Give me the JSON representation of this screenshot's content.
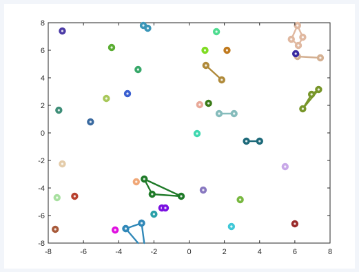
{
  "chart_data": {
    "type": "scatter",
    "title": "",
    "xlabel": "",
    "ylabel": "",
    "xlim": [
      -8,
      8
    ],
    "ylim": [
      -8,
      8
    ],
    "xticks": [
      -8,
      -6,
      -4,
      -2,
      0,
      2,
      4,
      6,
      8
    ],
    "yticks": [
      -8,
      -6,
      -4,
      -2,
      0,
      2,
      4,
      6,
      8
    ],
    "xtick_labels": [
      "-8",
      "-6",
      "-4",
      "-2",
      "0",
      "2",
      "4",
      "6",
      "8"
    ],
    "ytick_labels": [
      "-8",
      "-6",
      "-4",
      "-2",
      "0",
      "2",
      "4",
      "6",
      "8"
    ],
    "grid": false,
    "legend": "none",
    "points": [
      {
        "x": -7.2,
        "y": 7.4,
        "color": "#4b3aa6"
      },
      {
        "x": -4.4,
        "y": 6.2,
        "color": "#5aad32"
      },
      {
        "x": -2.9,
        "y": 4.6,
        "color": "#38a86a"
      },
      {
        "x": -3.5,
        "y": 2.85,
        "color": "#3a5fd0"
      },
      {
        "x": -4.7,
        "y": 2.5,
        "color": "#a8c85a"
      },
      {
        "x": -7.4,
        "y": 1.65,
        "color": "#3e8e78"
      },
      {
        "x": -5.6,
        "y": 0.8,
        "color": "#3a6aa0"
      },
      {
        "x": 1.55,
        "y": 7.35,
        "color": "#4fdc90"
      },
      {
        "x": 0.9,
        "y": 6.0,
        "color": "#80dc24"
      },
      {
        "x": 2.15,
        "y": 6.0,
        "color": "#c07a1e"
      },
      {
        "x": 1.1,
        "y": 2.15,
        "color": "#3a7a18"
      },
      {
        "x": 0.6,
        "y": 2.05,
        "color": "#e8a898"
      },
      {
        "x": 0.45,
        "y": -0.05,
        "color": "#40d8b0"
      },
      {
        "x": 6.05,
        "y": 5.75,
        "color": "#3a2aa0"
      },
      {
        "x": -7.2,
        "y": -2.25,
        "color": "#e4ccaa"
      },
      {
        "x": -7.5,
        "y": -4.7,
        "color": "#a8e0a0"
      },
      {
        "x": -6.5,
        "y": -4.6,
        "color": "#b8402e"
      },
      {
        "x": -7.6,
        "y": -7.0,
        "color": "#a85a3a"
      },
      {
        "x": -3.0,
        "y": -3.55,
        "color": "#f0a878"
      },
      {
        "x": 0.8,
        "y": -4.15,
        "color": "#8878c0"
      },
      {
        "x": 2.9,
        "y": -4.85,
        "color": "#78b840"
      },
      {
        "x": 5.45,
        "y": -2.45,
        "color": "#c8a8e8"
      },
      {
        "x": -2.0,
        "y": -5.9,
        "color": "#2aa0a8"
      },
      {
        "x": -4.2,
        "y": -7.05,
        "color": "#e010e0"
      },
      {
        "x": 2.4,
        "y": -6.8,
        "color": "#40c8d8"
      },
      {
        "x": 6.0,
        "y": -6.6,
        "color": "#9a2a2a"
      },
      {
        "x": -1.55,
        "y": -5.45,
        "color": "#7a10e0"
      },
      {
        "x": -1.35,
        "y": -5.45,
        "color": "#7a10e0"
      }
    ],
    "paths": [
      {
        "color": "#3a96b8",
        "closed": false,
        "points": [
          [
            -2.6,
            7.8
          ],
          [
            -2.35,
            7.6
          ]
        ]
      },
      {
        "color": "#b08a3a",
        "closed": false,
        "points": [
          [
            0.95,
            4.9
          ],
          [
            1.85,
            3.85
          ]
        ]
      },
      {
        "color": "#86bcbc",
        "closed": false,
        "points": [
          [
            1.7,
            1.4
          ],
          [
            2.55,
            1.4
          ]
        ]
      },
      {
        "color": "#1e6a7a",
        "closed": false,
        "points": [
          [
            3.25,
            -0.6
          ],
          [
            4.0,
            -0.6
          ]
        ]
      },
      {
        "color": "#e0b8a0",
        "closed": false,
        "points": [
          [
            6.15,
            7.8
          ],
          [
            6.45,
            6.95
          ],
          [
            6.2,
            6.35
          ],
          [
            5.8,
            6.8
          ],
          [
            6.15,
            7.8
          ]
        ]
      },
      {
        "color": "#d4b092",
        "closed": false,
        "points": [
          [
            6.15,
            5.55
          ],
          [
            7.45,
            5.45
          ]
        ]
      },
      {
        "color": "#78962a",
        "closed": true,
        "points": [
          [
            7.35,
            3.15
          ],
          [
            6.95,
            2.8
          ],
          [
            6.45,
            1.75
          ]
        ]
      },
      {
        "color": "#1e7a28",
        "closed": true,
        "points": [
          [
            -2.55,
            -3.35
          ],
          [
            -2.1,
            -4.45
          ],
          [
            -0.45,
            -4.6
          ]
        ]
      },
      {
        "color": "#3088b8",
        "closed": false,
        "points": [
          [
            -2.7,
            -6.55
          ],
          [
            -3.6,
            -6.95
          ]
        ]
      },
      {
        "color": "#3088b8",
        "closed": false,
        "points": [
          [
            -2.7,
            -6.55
          ],
          [
            -2.55,
            -8.0
          ]
        ]
      },
      {
        "color": "#3088b8",
        "closed": false,
        "points": [
          [
            -3.6,
            -6.95
          ],
          [
            -2.9,
            -8.0
          ]
        ]
      }
    ]
  }
}
